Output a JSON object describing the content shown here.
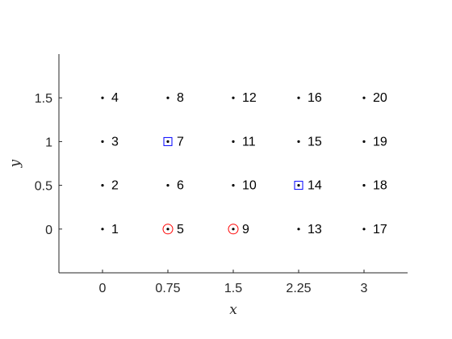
{
  "chart_data": {
    "type": "scatter",
    "xlabel": "x",
    "ylabel": "y",
    "xlim": [
      -0.5,
      3.5
    ],
    "ylim": [
      -0.5,
      2
    ],
    "xticks": [
      0,
      0.75,
      1.5,
      2.25,
      3
    ],
    "xtick_labels": [
      "0",
      "0.75",
      "1.5",
      "2.25",
      "3"
    ],
    "yticks": [
      0,
      0.5,
      1,
      1.5
    ],
    "ytick_labels": [
      "0",
      "0.5",
      "1",
      "1.5"
    ],
    "grid": false,
    "box": "left-bottom axes only",
    "points": [
      {
        "label": "1",
        "x": 0,
        "y": 0
      },
      {
        "label": "2",
        "x": 0,
        "y": 0.5
      },
      {
        "label": "3",
        "x": 0,
        "y": 1
      },
      {
        "label": "4",
        "x": 0,
        "y": 1.5
      },
      {
        "label": "5",
        "x": 0.75,
        "y": 0
      },
      {
        "label": "6",
        "x": 0.75,
        "y": 0.5
      },
      {
        "label": "7",
        "x": 0.75,
        "y": 1
      },
      {
        "label": "8",
        "x": 0.75,
        "y": 1.5
      },
      {
        "label": "9",
        "x": 1.5,
        "y": 0
      },
      {
        "label": "10",
        "x": 1.5,
        "y": 0.5
      },
      {
        "label": "11",
        "x": 1.5,
        "y": 1
      },
      {
        "label": "12",
        "x": 1.5,
        "y": 1.5
      },
      {
        "label": "13",
        "x": 2.25,
        "y": 0
      },
      {
        "label": "14",
        "x": 2.25,
        "y": 0.5
      },
      {
        "label": "15",
        "x": 2.25,
        "y": 1
      },
      {
        "label": "16",
        "x": 2.25,
        "y": 1.5
      },
      {
        "label": "17",
        "x": 3,
        "y": 0
      },
      {
        "label": "18",
        "x": 3,
        "y": 0.5
      },
      {
        "label": "19",
        "x": 3,
        "y": 1
      },
      {
        "label": "20",
        "x": 3,
        "y": 1.5
      }
    ],
    "circle_markers": {
      "color": "#ff0000",
      "points": [
        "5",
        "9"
      ]
    },
    "square_markers": {
      "color": "#0000ff",
      "points": [
        "7",
        "14"
      ]
    },
    "point_color": "#000000",
    "axis_color": "#262626"
  }
}
